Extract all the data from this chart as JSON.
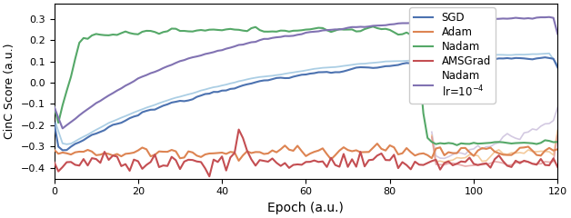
{
  "xlabel": "Epoch (a.u.)",
  "ylabel": "CinC Score (a.u.)",
  "xlim": [
    0,
    120
  ],
  "ylim": [
    -0.45,
    0.37
  ],
  "xticks": [
    0,
    20,
    40,
    60,
    80,
    100,
    120
  ],
  "yticks": [
    -0.4,
    -0.3,
    -0.2,
    -0.1,
    0.0,
    0.1,
    0.2,
    0.3
  ],
  "colors": {
    "SGD": "#4c72b0",
    "SGD_light": "#9dc6e0",
    "Adam": "#dd8452",
    "Nadam": "#55a868",
    "AMSGrad": "#c44e52",
    "Nadam_lr": "#8172b2",
    "Nadam_lr_light": "#c5b8d8",
    "Adam_light": "#f0b87a",
    "AMSGrad_light": "#e09090"
  },
  "legend_labels": {
    "SGD": "SGD",
    "Adam": "Adam",
    "Nadam": "Nadam",
    "AMSGrad": "AMSGrad",
    "Nadam_lr": "Nadam\nlr=10$^{-4}$"
  }
}
